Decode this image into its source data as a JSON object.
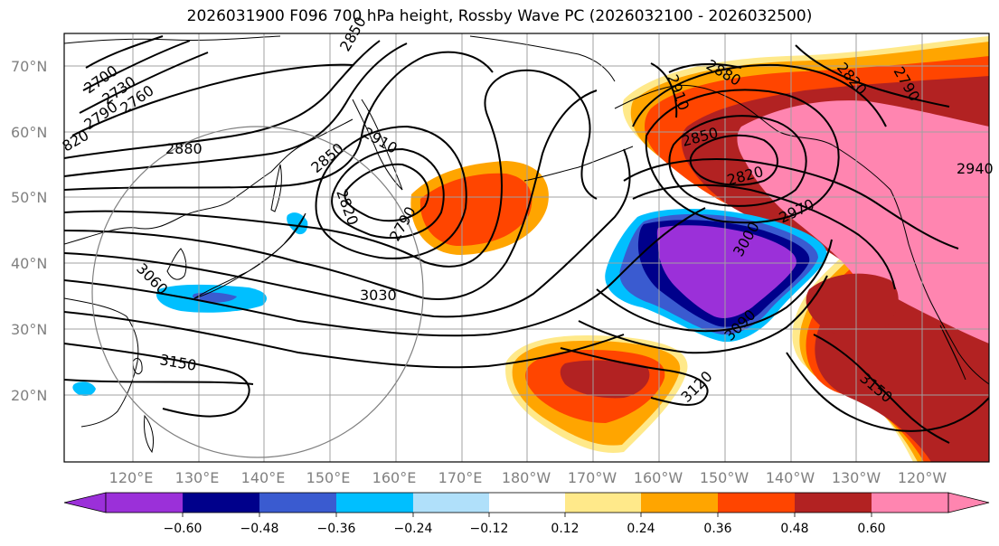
{
  "title": "2026031900 F096 700 hPa height, Rossby Wave PC (2026032100 - 2026032500)",
  "colors": {
    "neg_060": "#9b30d9",
    "neg_048": "#00008b",
    "neg_036": "#3a5bd0",
    "neg_024": "#00bfff",
    "neg_012": "#b0e0fa",
    "zero": "#ffffff",
    "pos_012": "#ffe98a",
    "pos_024": "#ffa500",
    "pos_036": "#ff4500",
    "pos_048": "#b22222",
    "pos_060": "#ff85b0",
    "grid": "#a0a0a0",
    "land": "#000000",
    "contour": "#000000"
  },
  "lat_labels": [
    "70°N",
    "60°N",
    "50°N",
    "40°N",
    "30°N",
    "20°N"
  ],
  "lon_labels": [
    "120°E",
    "130°E",
    "140°E",
    "150°E",
    "160°E",
    "170°E",
    "180°W",
    "170°W",
    "160°W",
    "150°W",
    "140°W",
    "130°W",
    "120°W"
  ],
  "colorbar": {
    "ticks": [
      "−0.60",
      "−0.48",
      "−0.36",
      "−0.24",
      "−0.12",
      "0.12",
      "0.24",
      "0.36",
      "0.48",
      "0.60"
    ]
  },
  "contour_labels": [
    "2700",
    "2730",
    "2760",
    "2790",
    "820",
    "2880",
    "2850",
    "2910",
    "2820",
    "2790",
    "3060",
    "3030",
    "3150",
    "2850",
    "2880",
    "2910",
    "2850",
    "2820",
    "2970",
    "3000",
    "3090",
    "3120",
    "3150",
    "2940",
    "2820",
    "2790"
  ]
}
